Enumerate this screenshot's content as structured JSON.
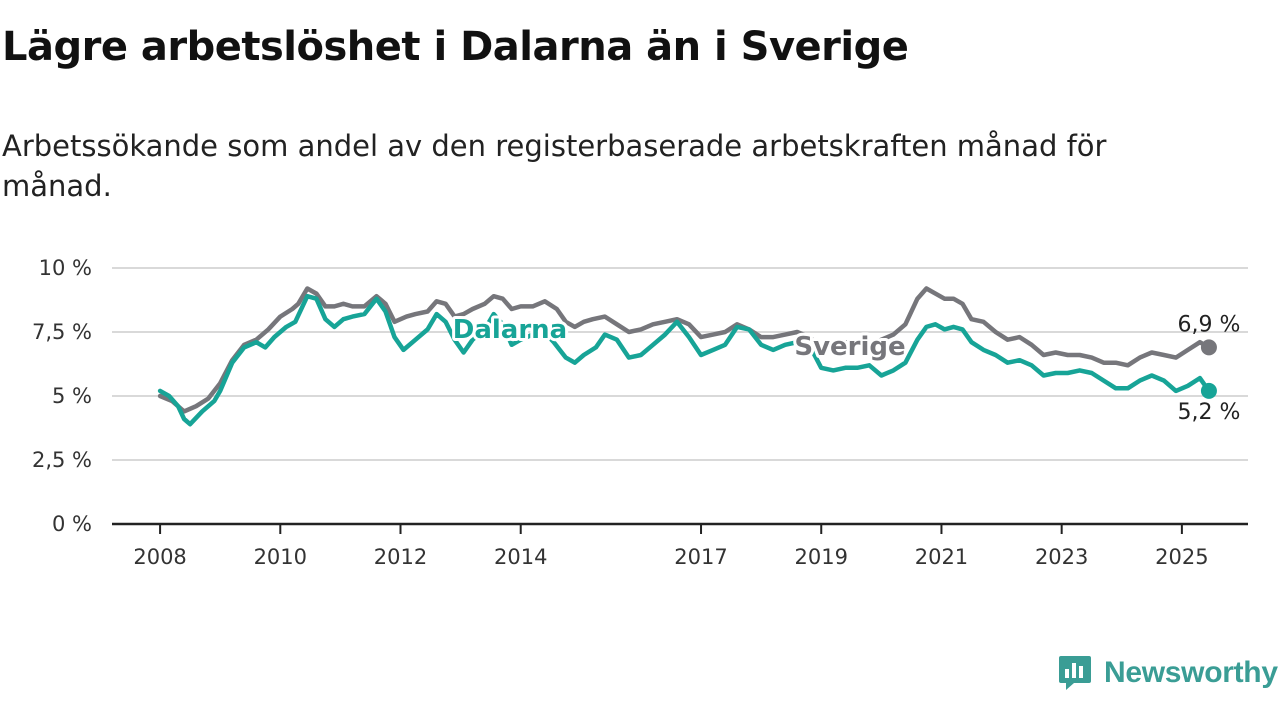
{
  "colors": {
    "dalarna": "#17a497",
    "sverige": "#76767b",
    "grid": "#d9d9d9",
    "axis": "#222222",
    "brand": "#3a9d95"
  },
  "chart_data": {
    "type": "line",
    "title": "Lägre arbetslöshet i Dalarna än i Sverige",
    "subtitle": "Arbetssökande som andel av den registerbaserade arbetskraften månad för månad.",
    "y_ticks": [
      {
        "value": 0,
        "label": "0 %"
      },
      {
        "value": 2.5,
        "label": "2,5 %"
      },
      {
        "value": 5,
        "label": "5 %"
      },
      {
        "value": 7.5,
        "label": "7,5 %"
      },
      {
        "value": 10,
        "label": "10 %"
      }
    ],
    "x_ticks": [
      {
        "value": 2008,
        "label": "2008"
      },
      {
        "value": 2010,
        "label": "2010"
      },
      {
        "value": 2012,
        "label": "2012"
      },
      {
        "value": 2014,
        "label": "2014"
      },
      {
        "value": 2017,
        "label": "2017"
      },
      {
        "value": 2019,
        "label": "2019"
      },
      {
        "value": 2021,
        "label": "2021"
      },
      {
        "value": 2023,
        "label": "2023"
      },
      {
        "value": 2025,
        "label": "2025"
      }
    ],
    "xlim": [
      2007.2,
      2026.1
    ],
    "ylim": [
      0,
      10
    ],
    "grid": true,
    "legend": "inline labels",
    "series": [
      {
        "name": "Sverige",
        "end_label": "6,9 %",
        "points": [
          [
            2008.0,
            5.0
          ],
          [
            2008.2,
            4.8
          ],
          [
            2008.4,
            4.4
          ],
          [
            2008.6,
            4.6
          ],
          [
            2008.8,
            4.9
          ],
          [
            2009.0,
            5.5
          ],
          [
            2009.2,
            6.4
          ],
          [
            2009.4,
            7.0
          ],
          [
            2009.6,
            7.2
          ],
          [
            2009.8,
            7.6
          ],
          [
            2010.0,
            8.1
          ],
          [
            2010.2,
            8.4
          ],
          [
            2010.3,
            8.6
          ],
          [
            2010.45,
            9.2
          ],
          [
            2010.6,
            9.0
          ],
          [
            2010.75,
            8.5
          ],
          [
            2010.9,
            8.5
          ],
          [
            2011.05,
            8.6
          ],
          [
            2011.2,
            8.5
          ],
          [
            2011.4,
            8.5
          ],
          [
            2011.6,
            8.9
          ],
          [
            2011.75,
            8.6
          ],
          [
            2011.9,
            7.9
          ],
          [
            2012.1,
            8.1
          ],
          [
            2012.25,
            8.2
          ],
          [
            2012.45,
            8.3
          ],
          [
            2012.6,
            8.7
          ],
          [
            2012.75,
            8.6
          ],
          [
            2012.9,
            8.1
          ],
          [
            2013.05,
            8.2
          ],
          [
            2013.2,
            8.4
          ],
          [
            2013.4,
            8.6
          ],
          [
            2013.55,
            8.9
          ],
          [
            2013.7,
            8.8
          ],
          [
            2013.85,
            8.4
          ],
          [
            2014.0,
            8.5
          ],
          [
            2014.2,
            8.5
          ],
          [
            2014.4,
            8.7
          ],
          [
            2014.6,
            8.4
          ],
          [
            2014.75,
            7.9
          ],
          [
            2014.9,
            7.7
          ],
          [
            2015.05,
            7.9
          ],
          [
            2015.2,
            8.0
          ],
          [
            2015.4,
            8.1
          ],
          [
            2015.6,
            7.8
          ],
          [
            2015.8,
            7.5
          ],
          [
            2016.0,
            7.6
          ],
          [
            2016.2,
            7.8
          ],
          [
            2016.4,
            7.9
          ],
          [
            2016.6,
            8.0
          ],
          [
            2016.8,
            7.8
          ],
          [
            2017.0,
            7.3
          ],
          [
            2017.2,
            7.4
          ],
          [
            2017.4,
            7.5
          ],
          [
            2017.6,
            7.8
          ],
          [
            2017.8,
            7.6
          ],
          [
            2018.0,
            7.3
          ],
          [
            2018.2,
            7.3
          ],
          [
            2018.4,
            7.4
          ],
          [
            2018.6,
            7.5
          ],
          [
            2018.8,
            7.3
          ],
          [
            2019.0,
            6.9
          ],
          [
            2019.2,
            7.0
          ],
          [
            2019.4,
            7.1
          ],
          [
            2019.6,
            7.1
          ],
          [
            2019.8,
            7.0
          ],
          [
            2020.0,
            7.2
          ],
          [
            2020.2,
            7.4
          ],
          [
            2020.4,
            7.8
          ],
          [
            2020.6,
            8.8
          ],
          [
            2020.75,
            9.2
          ],
          [
            2020.9,
            9.0
          ],
          [
            2021.05,
            8.8
          ],
          [
            2021.2,
            8.8
          ],
          [
            2021.35,
            8.6
          ],
          [
            2021.5,
            8.0
          ],
          [
            2021.7,
            7.9
          ],
          [
            2021.9,
            7.5
          ],
          [
            2022.1,
            7.2
          ],
          [
            2022.3,
            7.3
          ],
          [
            2022.5,
            7.0
          ],
          [
            2022.7,
            6.6
          ],
          [
            2022.9,
            6.7
          ],
          [
            2023.1,
            6.6
          ],
          [
            2023.3,
            6.6
          ],
          [
            2023.5,
            6.5
          ],
          [
            2023.7,
            6.3
          ],
          [
            2023.9,
            6.3
          ],
          [
            2024.1,
            6.2
          ],
          [
            2024.3,
            6.5
          ],
          [
            2024.5,
            6.7
          ],
          [
            2024.7,
            6.6
          ],
          [
            2024.9,
            6.5
          ],
          [
            2025.1,
            6.8
          ],
          [
            2025.3,
            7.1
          ],
          [
            2025.45,
            6.9
          ]
        ]
      },
      {
        "name": "Dalarna",
        "end_label": "5,2 %",
        "points": [
          [
            2008.0,
            5.2
          ],
          [
            2008.15,
            5.0
          ],
          [
            2008.3,
            4.6
          ],
          [
            2008.4,
            4.1
          ],
          [
            2008.5,
            3.9
          ],
          [
            2008.7,
            4.4
          ],
          [
            2008.9,
            4.8
          ],
          [
            2009.0,
            5.2
          ],
          [
            2009.2,
            6.3
          ],
          [
            2009.4,
            6.9
          ],
          [
            2009.6,
            7.1
          ],
          [
            2009.75,
            6.9
          ],
          [
            2009.9,
            7.3
          ],
          [
            2010.1,
            7.7
          ],
          [
            2010.25,
            7.9
          ],
          [
            2010.45,
            8.9
          ],
          [
            2010.6,
            8.8
          ],
          [
            2010.75,
            8.0
          ],
          [
            2010.9,
            7.7
          ],
          [
            2011.05,
            8.0
          ],
          [
            2011.2,
            8.1
          ],
          [
            2011.4,
            8.2
          ],
          [
            2011.6,
            8.8
          ],
          [
            2011.75,
            8.3
          ],
          [
            2011.9,
            7.3
          ],
          [
            2012.05,
            6.8
          ],
          [
            2012.25,
            7.2
          ],
          [
            2012.45,
            7.6
          ],
          [
            2012.6,
            8.2
          ],
          [
            2012.75,
            7.9
          ],
          [
            2012.9,
            7.2
          ],
          [
            2013.05,
            6.7
          ],
          [
            2013.2,
            7.2
          ],
          [
            2013.4,
            7.6
          ],
          [
            2013.55,
            8.2
          ],
          [
            2013.7,
            7.8
          ],
          [
            2013.85,
            7.0
          ],
          [
            2014.0,
            7.2
          ],
          [
            2014.2,
            7.4
          ],
          [
            2014.35,
            7.6
          ],
          [
            2014.55,
            7.1
          ],
          [
            2014.75,
            6.5
          ],
          [
            2014.9,
            6.3
          ],
          [
            2015.05,
            6.6
          ],
          [
            2015.25,
            6.9
          ],
          [
            2015.4,
            7.4
          ],
          [
            2015.6,
            7.2
          ],
          [
            2015.8,
            6.5
          ],
          [
            2016.0,
            6.6
          ],
          [
            2016.2,
            7.0
          ],
          [
            2016.4,
            7.4
          ],
          [
            2016.6,
            7.9
          ],
          [
            2016.8,
            7.3
          ],
          [
            2017.0,
            6.6
          ],
          [
            2017.2,
            6.8
          ],
          [
            2017.4,
            7.0
          ],
          [
            2017.6,
            7.7
          ],
          [
            2017.8,
            7.6
          ],
          [
            2018.0,
            7.0
          ],
          [
            2018.2,
            6.8
          ],
          [
            2018.4,
            7.0
          ],
          [
            2018.6,
            7.1
          ],
          [
            2018.8,
            7.0
          ],
          [
            2019.0,
            6.1
          ],
          [
            2019.2,
            6.0
          ],
          [
            2019.4,
            6.1
          ],
          [
            2019.6,
            6.1
          ],
          [
            2019.8,
            6.2
          ],
          [
            2020.0,
            5.8
          ],
          [
            2020.2,
            6.0
          ],
          [
            2020.4,
            6.3
          ],
          [
            2020.6,
            7.2
          ],
          [
            2020.75,
            7.7
          ],
          [
            2020.9,
            7.8
          ],
          [
            2021.05,
            7.6
          ],
          [
            2021.2,
            7.7
          ],
          [
            2021.35,
            7.6
          ],
          [
            2021.5,
            7.1
          ],
          [
            2021.7,
            6.8
          ],
          [
            2021.9,
            6.6
          ],
          [
            2022.1,
            6.3
          ],
          [
            2022.3,
            6.4
          ],
          [
            2022.5,
            6.2
          ],
          [
            2022.7,
            5.8
          ],
          [
            2022.9,
            5.9
          ],
          [
            2023.1,
            5.9
          ],
          [
            2023.3,
            6.0
          ],
          [
            2023.5,
            5.9
          ],
          [
            2023.7,
            5.6
          ],
          [
            2023.9,
            5.3
          ],
          [
            2024.1,
            5.3
          ],
          [
            2024.3,
            5.6
          ],
          [
            2024.5,
            5.8
          ],
          [
            2024.7,
            5.6
          ],
          [
            2024.9,
            5.2
          ],
          [
            2025.1,
            5.4
          ],
          [
            2025.3,
            5.7
          ],
          [
            2025.45,
            5.2
          ]
        ]
      }
    ]
  },
  "brand": {
    "name": "Newsworthy",
    "icon": "newsworthy-logo-icon"
  }
}
